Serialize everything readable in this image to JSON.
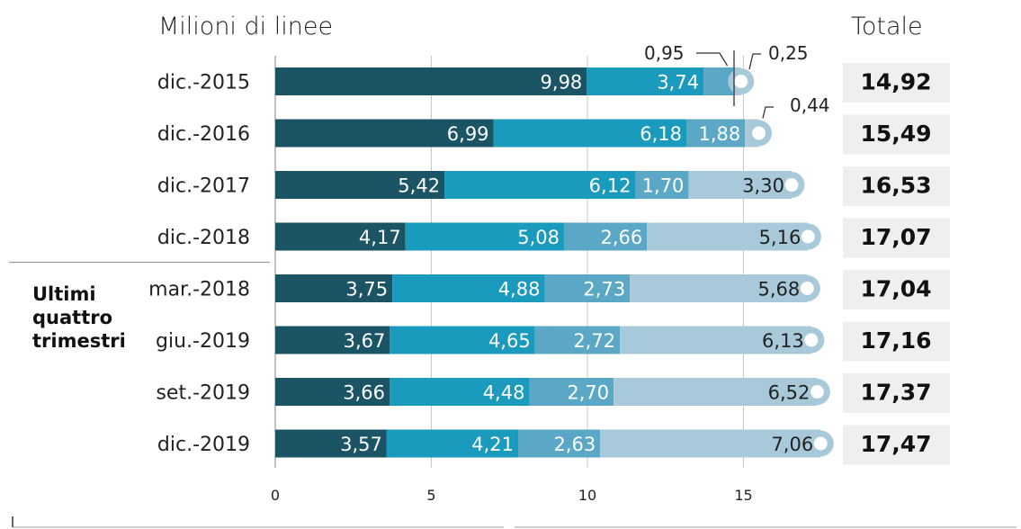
{
  "chart_data": {
    "type": "bar",
    "orientation": "horizontal",
    "stacked": true,
    "title": "Milioni di linee",
    "total_header": "Totale",
    "group_label": [
      "Ultimi",
      "quattro",
      "trimestri"
    ],
    "categories": [
      "dic.-2015",
      "dic.-2016",
      "dic.-2017",
      "dic.-2018",
      "mar.-2018",
      "giu.-2019",
      "set.-2019",
      "dic.-2019"
    ],
    "series": [
      {
        "values": [
          9.98,
          6.99,
          5.42,
          4.17,
          3.75,
          3.67,
          3.66,
          3.57
        ],
        "labels": [
          "9,98",
          "6,99",
          "5,42",
          "4,17",
          "3,75",
          "3,67",
          "3,66",
          "3,57"
        ],
        "color": "#1b5565"
      },
      {
        "values": [
          3.74,
          6.18,
          6.12,
          5.08,
          4.88,
          4.65,
          4.48,
          4.21
        ],
        "labels": [
          "3,74",
          "6,18",
          "6,12",
          "5,08",
          "4,88",
          "4,65",
          "4,48",
          "4,21"
        ],
        "color": "#1a9abd"
      },
      {
        "values": [
          0.95,
          1.88,
          1.7,
          2.66,
          2.73,
          2.72,
          2.7,
          2.63
        ],
        "labels": [
          "0,95",
          "1,88",
          "1,70",
          "2,66",
          "2,73",
          "2,72",
          "2,70",
          "2,63"
        ],
        "color": "#5ba7c6"
      },
      {
        "values": [
          0.25,
          0.44,
          3.3,
          5.16,
          5.68,
          6.13,
          6.52,
          7.06
        ],
        "labels": [
          "0,25",
          "0,44",
          "3,30",
          "5,16",
          "5,68",
          "6,13",
          "6,52",
          "7,06"
        ],
        "color": "#a8c9d9"
      }
    ],
    "totals": [
      "14,92",
      "15,49",
      "16,53",
      "17,07",
      "17,04",
      "17,16",
      "17,37",
      "17,47"
    ],
    "xticks": [
      0,
      5,
      10,
      15
    ],
    "xtick_labels": [
      "0",
      "5",
      "10",
      "15"
    ],
    "xlim": [
      0,
      18
    ],
    "grid": true,
    "outside_labels": [
      {
        "row": 0,
        "series": 2,
        "text": "0,95"
      },
      {
        "row": 0,
        "series": 3,
        "text": "0,25"
      },
      {
        "row": 1,
        "series": 3,
        "text": "0,44"
      }
    ]
  }
}
